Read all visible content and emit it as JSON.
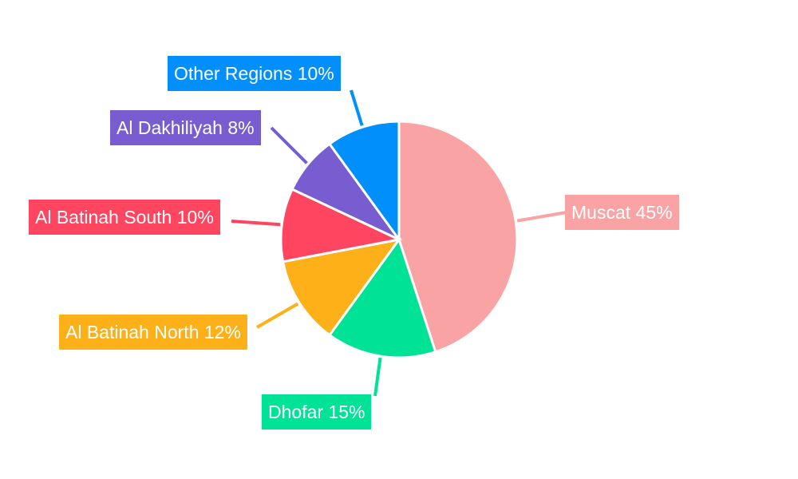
{
  "chart_data": {
    "type": "pie",
    "title": "",
    "start_angle": "12 o'clock, clockwise",
    "legend": "none (callout labels)",
    "slices": [
      {
        "label": "Muscat",
        "value": 45,
        "display": "Muscat 45%",
        "color": "#F9A3A4"
      },
      {
        "label": "Dhofar",
        "value": 15,
        "display": "Dhofar 15%",
        "color": "#00E396"
      },
      {
        "label": "Al Batinah North",
        "value": 12,
        "display": "Al Batinah North 12%",
        "color": "#FEB019"
      },
      {
        "label": "Al Batinah South",
        "value": 10,
        "display": "Al Batinah South 10%",
        "color": "#FF4560"
      },
      {
        "label": "Al Dakhiliyah",
        "value": 8,
        "display": "Al Dakhiliyah 8%",
        "color": "#775DD0"
      },
      {
        "label": "Other Regions",
        "value": 10,
        "display": "Other Regions 10%",
        "color": "#008FFB"
      }
    ]
  },
  "labels": {
    "muscat": "Muscat 45%",
    "dhofar": "Dhofar 15%",
    "batinah_north": "Al Batinah North 12%",
    "batinah_south": "Al Batinah South 10%",
    "dakhiliyah": "Al Dakhiliyah 8%",
    "other": "Other Regions 10%"
  }
}
